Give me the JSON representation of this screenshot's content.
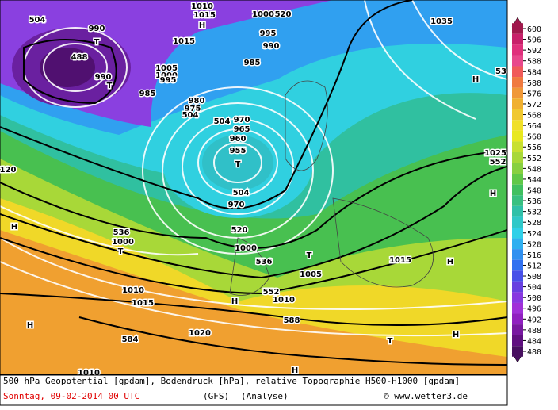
{
  "map": {
    "labels": [
      "504",
      "990",
      "488",
      "T",
      "T",
      "990",
      "1015",
      "H",
      "1010",
      "1015",
      "1000",
      "520",
      "995",
      "990",
      "985",
      "985",
      "1005",
      "1000",
      "995",
      "980",
      "975",
      "504",
      "504",
      "970",
      "965",
      "960",
      "955",
      "T",
      "504",
      "970",
      "520",
      "1000",
      "536",
      "1000",
      "T",
      "536",
      "T",
      "1005",
      "1015",
      "552",
      "1010",
      "588",
      "H",
      "1010",
      "1015",
      "584",
      "1020",
      "T",
      "H",
      "H",
      "1035",
      "H",
      "53",
      "1025",
      "552",
      "H",
      "120",
      "H",
      "H",
      "H",
      "1010"
    ]
  },
  "colorbar": {
    "ticks": [
      600,
      596,
      592,
      588,
      584,
      580,
      576,
      572,
      568,
      564,
      560,
      556,
      552,
      548,
      544,
      540,
      536,
      532,
      528,
      524,
      520,
      516,
      512,
      508,
      504,
      500,
      496,
      492,
      488,
      484,
      480
    ],
    "colors": [
      "#a0184c",
      "#c8206a",
      "#e0307c",
      "#e8488c",
      "#f05a5a",
      "#f07a40",
      "#f09838",
      "#f0b030",
      "#f0c830",
      "#f0e028",
      "#e8e820",
      "#c8e030",
      "#a8d838",
      "#88d040",
      "#60c848",
      "#40c060",
      "#38c080",
      "#30c0a8",
      "#30c8c8",
      "#30d0e8",
      "#30b0f0",
      "#3090f0",
      "#3070f0",
      "#4850e8",
      "#6840e0",
      "#8838e0",
      "#a030d8",
      "#9020c0",
      "#7818a0",
      "#601080",
      "#481060"
    ]
  },
  "caption": {
    "line1": "500 hPa Geopotential [gpdam], Bodendruck [hPa], relative Topographie H500-H1000 [gpdam]",
    "date": "Sonntag, 09-02-2014  00 UTC",
    "model": "(GFS)",
    "kind": "(Analyse)",
    "credit": "© www.wetter3.de"
  }
}
